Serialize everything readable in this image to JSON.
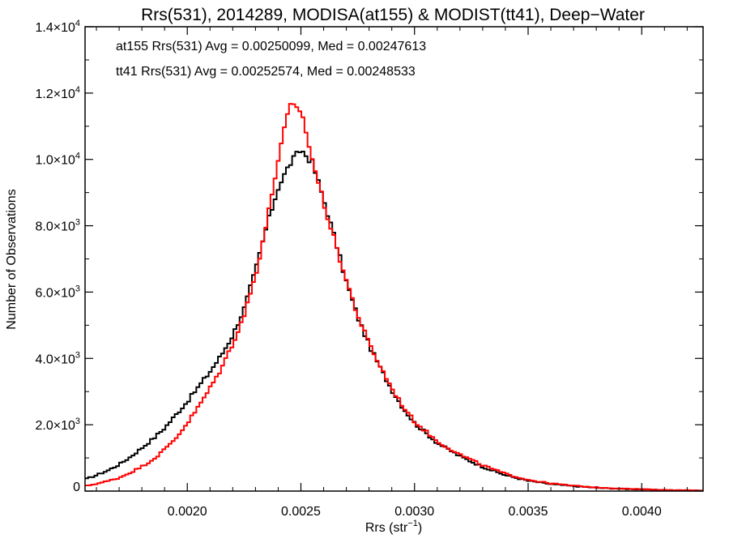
{
  "chart_data": {
    "type": "line",
    "title": "Rrs(531), 2014289, MODISA(at155) & MODIST(tt41), Deep−Water",
    "xlabel": "Rrs (str",
    "xlabel_sup": "−1",
    "xlabel_end": ")",
    "ylabel": "Number of Observations",
    "xlim": [
      0.00155,
      0.00427
    ],
    "ylim": [
      0,
      14000
    ],
    "grid": false,
    "x_ticks": [
      {
        "value": 0.002,
        "label": "0.0020"
      },
      {
        "value": 0.0025,
        "label": "0.0025"
      },
      {
        "value": 0.003,
        "label": "0.0030"
      },
      {
        "value": 0.0035,
        "label": "0.0035"
      },
      {
        "value": 0.004,
        "label": "0.0040"
      }
    ],
    "y_ticks": [
      {
        "value": 0,
        "mantissa": "0",
        "exp": ""
      },
      {
        "value": 2000,
        "mantissa": "2.0×10",
        "exp": "3"
      },
      {
        "value": 4000,
        "mantissa": "4.0×10",
        "exp": "3"
      },
      {
        "value": 6000,
        "mantissa": "6.0×10",
        "exp": "3"
      },
      {
        "value": 8000,
        "mantissa": "8.0×10",
        "exp": "3"
      },
      {
        "value": 10000,
        "mantissa": "1.0×10",
        "exp": "4"
      },
      {
        "value": 12000,
        "mantissa": "1.2×10",
        "exp": "4"
      },
      {
        "value": 14000,
        "mantissa": "1.4×10",
        "exp": "4"
      }
    ],
    "annotations": [
      {
        "text": "at155 Rrs(531) Avg = 0.00250099, Med = 0.00247613",
        "color": "#000000"
      },
      {
        "text": "tt41 Rrs(531) Avg = 0.00252574, Med = 0.00248533",
        "color": "#ff0000"
      }
    ],
    "series": [
      {
        "color": "#000000",
        "x": [
          0.00155,
          0.0016,
          0.00165,
          0.0017,
          0.00175,
          0.0018,
          0.00185,
          0.0019,
          0.00195,
          0.002,
          0.00205,
          0.0021,
          0.00215,
          0.0022,
          0.00225,
          0.0023,
          0.00235,
          0.0024,
          0.00245,
          0.0025,
          0.00255,
          0.0026,
          0.00265,
          0.0027,
          0.00275,
          0.0028,
          0.00285,
          0.0029,
          0.00295,
          0.003,
          0.0031,
          0.0032,
          0.0033,
          0.0034,
          0.0035,
          0.0036,
          0.0037,
          0.0038,
          0.0039,
          0.004,
          0.0041,
          0.0042,
          0.00427
        ],
        "y": [
          350,
          480,
          620,
          800,
          1030,
          1300,
          1580,
          1900,
          2300,
          2700,
          3150,
          3600,
          4100,
          4700,
          5500,
          6650,
          8000,
          9150,
          9850,
          10300,
          9900,
          8800,
          7600,
          6300,
          5250,
          4400,
          3700,
          3050,
          2500,
          2050,
          1450,
          1050,
          730,
          480,
          310,
          210,
          150,
          100,
          70,
          50,
          30,
          20,
          15
        ]
      },
      {
        "color": "#ff0000",
        "x": [
          0.00155,
          0.0016,
          0.00165,
          0.0017,
          0.00175,
          0.0018,
          0.00185,
          0.0019,
          0.00195,
          0.002,
          0.00205,
          0.0021,
          0.00215,
          0.0022,
          0.00225,
          0.0023,
          0.00235,
          0.0024,
          0.00245,
          0.0025,
          0.00255,
          0.0026,
          0.00265,
          0.0027,
          0.00275,
          0.0028,
          0.00285,
          0.0029,
          0.00295,
          0.003,
          0.0031,
          0.0032,
          0.0033,
          0.0034,
          0.0035,
          0.0036,
          0.0037,
          0.0038,
          0.0039,
          0.004,
          0.0041,
          0.0042,
          0.00427
        ],
        "y": [
          150,
          220,
          300,
          400,
          560,
          740,
          960,
          1250,
          1600,
          2050,
          2550,
          3100,
          3700,
          4450,
          5300,
          6500,
          8100,
          10000,
          11600,
          11500,
          10000,
          8700,
          7500,
          6350,
          5300,
          4450,
          3750,
          3100,
          2550,
          2100,
          1500,
          1100,
          780,
          520,
          340,
          230,
          160,
          110,
          80,
          55,
          35,
          25,
          15
        ]
      }
    ]
  }
}
